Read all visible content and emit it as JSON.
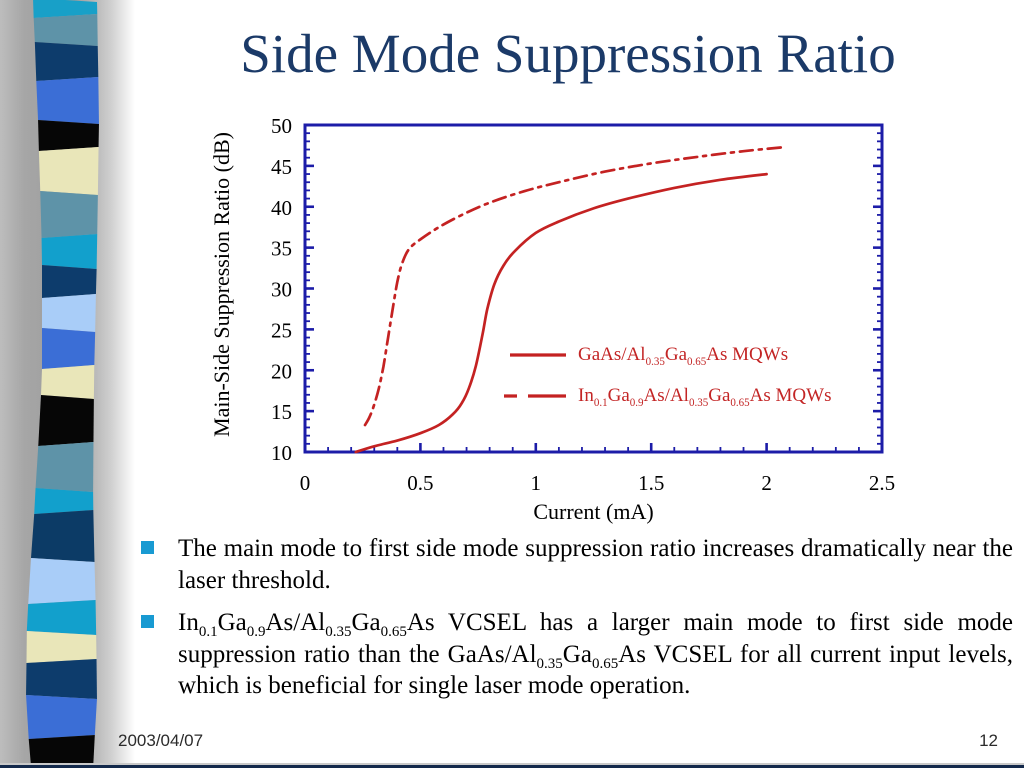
{
  "slide": {
    "title": "Side Mode Suppression Ratio",
    "footer": {
      "date": "2003/04/07",
      "page": "12"
    },
    "bullets": [
      {
        "segments": [
          {
            "t": "The main mode to first side mode suppression ratio increases dramatically near the laser threshold."
          }
        ]
      },
      {
        "segments": [
          {
            "t": "In"
          },
          {
            "t": "0.1",
            "sub": true
          },
          {
            "t": "Ga"
          },
          {
            "t": "0.9",
            "sub": true
          },
          {
            "t": "As/Al"
          },
          {
            "t": "0.35",
            "sub": true
          },
          {
            "t": "Ga"
          },
          {
            "t": "0.65",
            "sub": true
          },
          {
            "t": "As VCSEL has a larger main mode to first side mode suppression ratio than the GaAs/Al"
          },
          {
            "t": "0.35",
            "sub": true
          },
          {
            "t": "Ga"
          },
          {
            "t": "0.65",
            "sub": true
          },
          {
            "t": "As VCSEL for all current input levels, which is beneficial for single laser mode operation."
          }
        ]
      }
    ]
  },
  "chart_data": {
    "type": "line",
    "title": "",
    "xlabel": "Current (mA)",
    "ylabel": "Main-Side Suppression Ratio (dB)",
    "xlim": [
      0,
      2.5
    ],
    "ylim": [
      10,
      50
    ],
    "xticks": [
      0,
      0.5,
      1,
      1.5,
      2,
      2.5
    ],
    "xtick_labels": [
      "0",
      "0.5",
      "1",
      "1.5",
      "2",
      "2.5"
    ],
    "yticks": [
      10,
      15,
      20,
      25,
      30,
      35,
      40,
      45,
      50
    ],
    "x_minor_step": 0.1,
    "y_minor_step": 1,
    "grid": false,
    "legend_position": "inside-right-middle",
    "axis_color": "#1c1ca8",
    "series": [
      {
        "id": "gaas-mqw-curve",
        "name": "GaAs/Al0.35Ga0.65As MQWs",
        "name_rich": [
          {
            "t": "GaAs/Al"
          },
          {
            "t": "0.35",
            "sub": true
          },
          {
            "t": "Ga"
          },
          {
            "t": "0.65",
            "sub": true
          },
          {
            "t": "As MQWs"
          }
        ],
        "style": "solid",
        "color": "#c42222",
        "points": [
          [
            0.22,
            10
          ],
          [
            0.3,
            10.7
          ],
          [
            0.4,
            11.4
          ],
          [
            0.5,
            12.3
          ],
          [
            0.58,
            13.3
          ],
          [
            0.64,
            14.6
          ],
          [
            0.68,
            16.0
          ],
          [
            0.71,
            17.8
          ],
          [
            0.74,
            20.5
          ],
          [
            0.77,
            24.5
          ],
          [
            0.79,
            27.5
          ],
          [
            0.82,
            30.5
          ],
          [
            0.86,
            32.8
          ],
          [
            0.91,
            34.6
          ],
          [
            1.0,
            36.8
          ],
          [
            1.1,
            38.2
          ],
          [
            1.25,
            39.8
          ],
          [
            1.4,
            41.0
          ],
          [
            1.6,
            42.3
          ],
          [
            1.8,
            43.3
          ],
          [
            2.0,
            44.0
          ]
        ]
      },
      {
        "id": "ingaas-mqw-curve",
        "name": "In0.1Ga0.9As/Al0.35Ga0.65As MQWs",
        "name_rich": [
          {
            "t": "In"
          },
          {
            "t": "0.1",
            "sub": true
          },
          {
            "t": "Ga"
          },
          {
            "t": "0.9",
            "sub": true
          },
          {
            "t": "As/Al"
          },
          {
            "t": "0.35",
            "sub": true
          },
          {
            "t": "Ga"
          },
          {
            "t": "0.65",
            "sub": true
          },
          {
            "t": "As MQWs"
          }
        ],
        "style": "dash-dot",
        "color": "#c42222",
        "points": [
          [
            0.26,
            13.3
          ],
          [
            0.28,
            14.3
          ],
          [
            0.3,
            15.8
          ],
          [
            0.32,
            17.8
          ],
          [
            0.34,
            20.5
          ],
          [
            0.36,
            24.0
          ],
          [
            0.38,
            27.5
          ],
          [
            0.4,
            30.8
          ],
          [
            0.42,
            33.0
          ],
          [
            0.45,
            34.8
          ],
          [
            0.5,
            36.0
          ],
          [
            0.58,
            37.5
          ],
          [
            0.68,
            39.0
          ],
          [
            0.8,
            40.5
          ],
          [
            0.95,
            41.9
          ],
          [
            1.1,
            43.0
          ],
          [
            1.3,
            44.3
          ],
          [
            1.5,
            45.3
          ],
          [
            1.7,
            46.1
          ],
          [
            1.9,
            46.8
          ],
          [
            2.08,
            47.3
          ]
        ]
      }
    ]
  },
  "decor": {
    "accent_navy": "#1b3a68",
    "bullet_color": "#189ad2",
    "curve_red": "#c42222",
    "ribbon_bands": [
      {
        "color": "#18a0c8",
        "from": 0,
        "to": 16
      },
      {
        "color": "#5e93a8",
        "from": 16,
        "to": 44
      },
      {
        "color": "#0d3c6c",
        "from": 44,
        "to": 79
      },
      {
        "color": "#3b6ed6",
        "from": 79,
        "to": 122
      },
      {
        "color": "#060606",
        "from": 122,
        "to": 149
      },
      {
        "color": "#e9e6b9",
        "from": 149,
        "to": 193
      },
      {
        "color": "#5e93a8",
        "from": 193,
        "to": 236
      },
      {
        "color": "#12a0cc",
        "from": 236,
        "to": 267
      },
      {
        "color": "#0d3c6c",
        "from": 267,
        "to": 296
      },
      {
        "color": "#a9cdf8",
        "from": 296,
        "to": 330
      },
      {
        "color": "#3b6ed6",
        "from": 330,
        "to": 367
      },
      {
        "color": "#e9e6b9",
        "from": 367,
        "to": 397
      },
      {
        "color": "#060606",
        "from": 397,
        "to": 444
      },
      {
        "color": "#5e93a8",
        "from": 444,
        "to": 490
      },
      {
        "color": "#12a0cc",
        "from": 490,
        "to": 512
      },
      {
        "color": "#0c3b66",
        "from": 512,
        "to": 560
      },
      {
        "color": "#a9cdf8",
        "from": 560,
        "to": 602
      },
      {
        "color": "#12a0cc",
        "from": 602,
        "to": 633
      },
      {
        "color": "#e9e6b9",
        "from": 633,
        "to": 661
      },
      {
        "color": "#0d3c6c",
        "from": 661,
        "to": 697
      },
      {
        "color": "#3b6ed6",
        "from": 697,
        "to": 737
      },
      {
        "color": "#060606",
        "from": 737,
        "to": 768
      }
    ]
  }
}
